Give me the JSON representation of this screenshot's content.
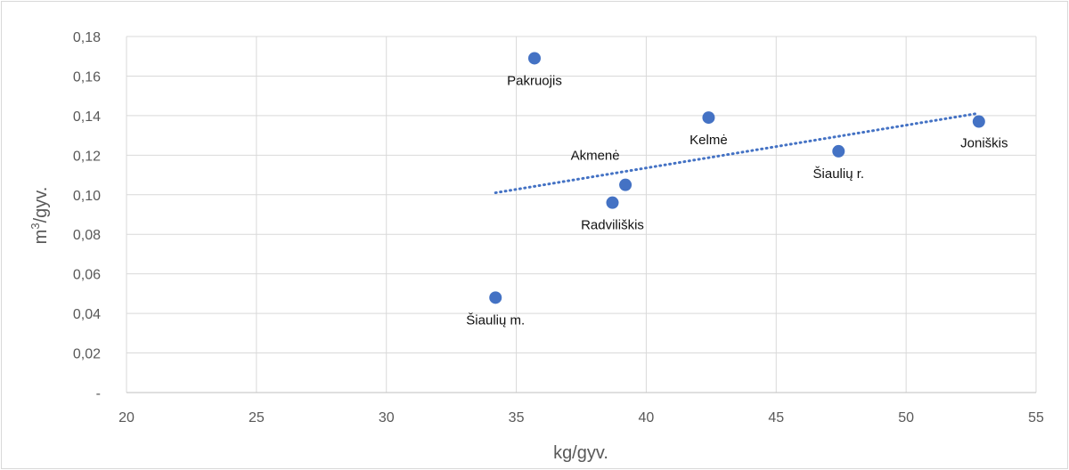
{
  "chart_data": {
    "type": "scatter",
    "xlabel": "kg/gyv.",
    "ylabel_base": "m",
    "ylabel_sup": "3",
    "ylabel_rest": "/gyv.",
    "xlim": [
      20,
      55
    ],
    "ylim": [
      0,
      0.18
    ],
    "x_ticks": [
      20,
      25,
      30,
      35,
      40,
      45,
      50,
      55
    ],
    "x_tick_labels": [
      "20",
      "25",
      "30",
      "35",
      "40",
      "45",
      "50",
      "55"
    ],
    "y_ticks": [
      0,
      0.02,
      0.04,
      0.06,
      0.08,
      0.1,
      0.12,
      0.14,
      0.16,
      0.18
    ],
    "y_tick_labels": [
      "-",
      "0,02",
      "0,04",
      "0,06",
      "0,08",
      "0,10",
      "0,12",
      "0,14",
      "0,16",
      "0,18"
    ],
    "grid": true,
    "marker_color": "#4472c4",
    "trendline_color": "#4472c4",
    "trendline": {
      "style": "dotted",
      "x": [
        34.2,
        52.7
      ],
      "y": [
        0.101,
        0.141
      ]
    },
    "points": [
      {
        "label": "Pakruojis",
        "x": 35.7,
        "y": 0.169,
        "label_pos": "below"
      },
      {
        "label": "Kelmė",
        "x": 42.4,
        "y": 0.139,
        "label_pos": "below"
      },
      {
        "label": "Joniškis",
        "x": 52.8,
        "y": 0.137,
        "label_pos": "below-right"
      },
      {
        "label": "Šiaulių r.",
        "x": 47.4,
        "y": 0.122,
        "label_pos": "below"
      },
      {
        "label": "Akmenė",
        "x": 39.2,
        "y": 0.105,
        "label_pos": "above-left"
      },
      {
        "label": "Radviliškis",
        "x": 38.7,
        "y": 0.096,
        "label_pos": "below"
      },
      {
        "label": "Šiaulių m.",
        "x": 34.2,
        "y": 0.048,
        "label_pos": "below"
      }
    ]
  }
}
